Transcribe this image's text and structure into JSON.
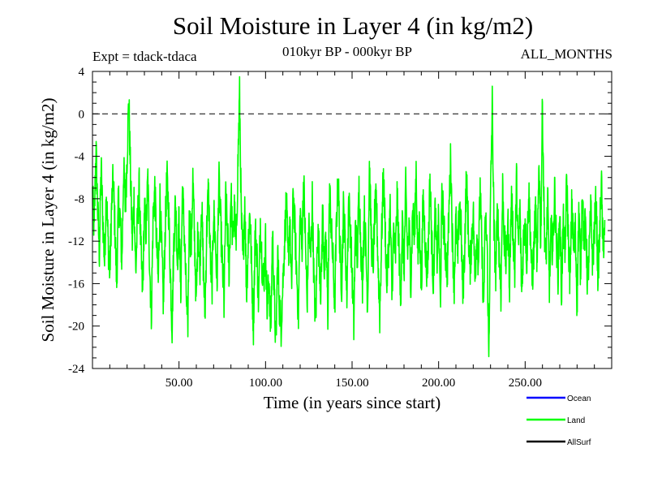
{
  "chart_data": {
    "type": "line",
    "title": "Soil Moisture in Layer 4 (in kg/m2)",
    "subtitle_left": "Expt = tdack-tdaca",
    "subtitle_center": "010kyr BP - 000kyr BP",
    "subtitle_right": "ALL_MONTHS",
    "xlabel": "Time (in years since start)",
    "ylabel": "Soil Moisture in Layer 4 (in kg/m2)",
    "xlim": [
      0,
      300
    ],
    "ylim": [
      -24,
      4
    ],
    "x_ticks": [
      50,
      100,
      150,
      200,
      250
    ],
    "x_tick_labels": [
      "50.00",
      "100.00",
      "150.00",
      "200.00",
      "250.00"
    ],
    "y_ticks": [
      4,
      0,
      -4,
      -8,
      -12,
      -16,
      -20,
      -24
    ],
    "y_tick_labels": [
      "4",
      "0",
      "-4",
      "-8",
      "-12",
      "-16",
      "-20",
      "-24"
    ],
    "reference_line": 0,
    "colors": {
      "ocean": "#0000ff",
      "land": "#00ff00",
      "allsurf": "#000000",
      "reference": "#000000"
    },
    "legend": [
      {
        "name": "Ocean",
        "color": "#0000ff"
      },
      {
        "name": "Land",
        "color": "#00ff00"
      },
      {
        "name": "AllSurf",
        "color": "#000000"
      }
    ],
    "series": [
      {
        "name": "Land",
        "color": "#00ff00",
        "x_start": 0,
        "x_step": 1,
        "values": [
          -7.5,
          -11,
          -3,
          -9,
          -13,
          -5,
          -10,
          -14,
          -7,
          -12,
          -15,
          -9,
          -6,
          -11,
          -16,
          -8,
          -10,
          -14,
          -5,
          -9,
          -4,
          1.5,
          -6,
          -12,
          -8,
          -15,
          -10,
          -7,
          -13,
          -17,
          -9,
          -11,
          -6,
          -14,
          -19,
          -10,
          -7,
          -12,
          -16,
          -8,
          -13,
          -18,
          -11,
          -6,
          -9,
          -15,
          -20,
          -12,
          -8,
          -14,
          -10,
          -17,
          -7,
          -11,
          -16,
          -21,
          -9,
          -13,
          -6,
          -12,
          -18,
          -10,
          -15,
          -8,
          -14,
          -19,
          -11,
          -7,
          -13,
          -17,
          -9,
          -12,
          -16,
          -6,
          -10,
          -14,
          -18,
          -8,
          -11,
          -15,
          -7,
          -12,
          -9,
          -13,
          -5,
          2,
          -10,
          -14,
          -8,
          -17,
          -12,
          -9,
          -15,
          -20,
          -11,
          -13,
          -18,
          -10,
          -14,
          -16,
          -12,
          -19,
          -15,
          -21,
          -11,
          -17,
          -22,
          -13,
          -18,
          -20,
          -16,
          -12,
          -8,
          -14,
          -10,
          -17,
          -7,
          -11,
          -15,
          -19,
          -9,
          -13,
          -6,
          -12,
          -18,
          -10,
          -14,
          -8,
          -16,
          -20,
          -11,
          -13,
          -17,
          -9,
          -15,
          -12,
          -19,
          -7,
          -11,
          -14,
          -18,
          -10,
          -6,
          -13,
          -16,
          -9,
          -12,
          -17,
          -8,
          -11,
          -15,
          -20,
          -10,
          -14,
          -7,
          -12,
          -16,
          -9,
          -13,
          -18,
          -5,
          -11,
          -15,
          -10,
          -8,
          -14,
          -19,
          -12,
          -6,
          -10,
          -16,
          -13,
          -9,
          -17,
          -11,
          -14,
          -8,
          -12,
          -18,
          -10,
          -15,
          -7,
          -13,
          -11,
          -16,
          -9,
          -12,
          -5,
          -14,
          -10,
          -17,
          -8,
          -11,
          -15,
          -13,
          -6,
          -12,
          -16,
          -9,
          -14,
          -10,
          -18,
          -7,
          -11,
          -13,
          -15,
          -9,
          -4,
          -12,
          -16,
          -10,
          -14,
          -8,
          -11,
          -17,
          -13,
          -6,
          -10,
          -15,
          -12,
          -9,
          -16,
          -11,
          -14,
          -7,
          -13,
          -18,
          -10,
          -12,
          -23,
          -8,
          1,
          -11,
          -15,
          -9,
          -13,
          -17,
          -7,
          -12,
          -14,
          -10,
          -16,
          -8,
          -11,
          -15,
          -6,
          -13,
          -9,
          -17,
          -12,
          -10,
          -14,
          -7,
          -11,
          -16,
          -13,
          -9,
          -15,
          -4,
          -12,
          1,
          -10,
          -14,
          -8,
          -16,
          -11,
          -13,
          -7,
          -12,
          -15,
          -9,
          -17,
          -10,
          -14,
          -6,
          -12,
          -16,
          -8,
          -13,
          -11,
          -18,
          -9,
          -15,
          -7,
          -12,
          -10,
          -16,
          -13,
          -9,
          -14,
          -11,
          -8,
          -15,
          -12,
          -6,
          -13,
          -10
        ]
      }
    ]
  }
}
